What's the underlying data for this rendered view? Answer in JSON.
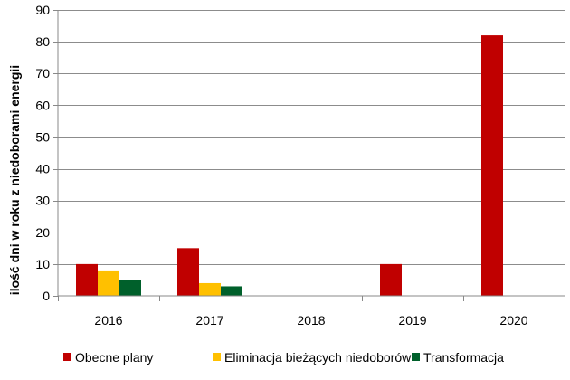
{
  "chart_data": {
    "type": "bar",
    "title": "",
    "xlabel": "",
    "ylabel": "ilość dni w roku z niedoborami energii",
    "ylim": [
      0,
      90
    ],
    "yticks": [
      0,
      10,
      20,
      30,
      40,
      50,
      60,
      70,
      80,
      90
    ],
    "grid": true,
    "legend_position": "bottom",
    "categories": [
      "2016",
      "2017",
      "2018",
      "2019",
      "2020"
    ],
    "series": [
      {
        "name": "Obecne plany",
        "color": "#c00000",
        "values": [
          10,
          15,
          0,
          10,
          82
        ]
      },
      {
        "name": "Eliminacja bieżących niedoborów",
        "color": "#ffc000",
        "values": [
          8,
          4,
          0,
          0,
          0
        ]
      },
      {
        "name": "Transformacja",
        "color": "#00602b",
        "values": [
          5,
          3,
          0,
          0,
          0
        ]
      }
    ]
  }
}
